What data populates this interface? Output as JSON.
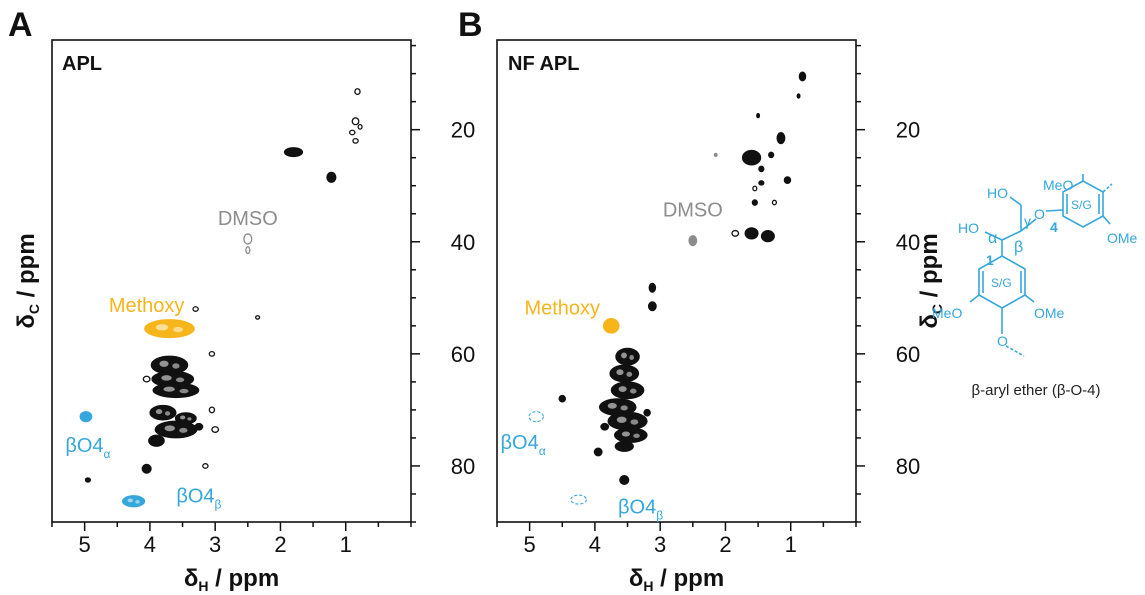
{
  "figure": {
    "colors": {
      "axis": "#111111",
      "black": "#111111",
      "gray": "#8c8c8c",
      "orange": "#f6b51b",
      "blue": "#35a7dc"
    },
    "panels": [
      {
        "letter": "A",
        "sample": "APL",
        "xlabel": "δ",
        "xlabel_sub": "H",
        "xlabel_unit": " / ppm",
        "ylabel": "δ",
        "ylabel_sub": "C",
        "ylabel_unit": " / ppm",
        "xticks": [
          {
            "v": 5,
            "label": "5"
          },
          {
            "v": 4,
            "label": "4"
          },
          {
            "v": 3,
            "label": "3"
          },
          {
            "v": 2,
            "label": "2"
          },
          {
            "v": 1,
            "label": "1"
          }
        ],
        "yticks": [
          {
            "v": 20,
            "label": "20"
          },
          {
            "v": 40,
            "label": "40"
          },
          {
            "v": 60,
            "label": "60"
          },
          {
            "v": 80,
            "label": "80"
          }
        ],
        "xlim": [
          5.5,
          0.0
        ],
        "ylim": [
          4,
          90
        ],
        "annotations": [
          {
            "id": "dmso",
            "text": "DMSO",
            "sub": "",
            "x": 2.5,
            "y": 37,
            "color": "gray"
          },
          {
            "id": "methoxy",
            "text": "Methoxy",
            "sub": "",
            "x": 4.05,
            "y": 52.5,
            "color": "orange"
          },
          {
            "id": "bo4a",
            "text": "βO4",
            "sub": "α",
            "x": 4.95,
            "y": 77.5,
            "color": "blue"
          },
          {
            "id": "bo4b",
            "text": "βO4",
            "sub": "β",
            "x": 3.25,
            "y": 86.5,
            "color": "blue"
          }
        ],
        "peaks": [
          {
            "x": 0.82,
            "y": 13.2,
            "w": 0.04,
            "h": 0.5,
            "color": "black",
            "type": "outline"
          },
          {
            "x": 0.85,
            "y": 18.5,
            "w": 0.05,
            "h": 0.6,
            "color": "black",
            "type": "outline"
          },
          {
            "x": 0.78,
            "y": 19.5,
            "w": 0.03,
            "h": 0.4,
            "color": "black",
            "type": "outline"
          },
          {
            "x": 0.9,
            "y": 20.5,
            "w": 0.04,
            "h": 0.4,
            "color": "black",
            "type": "outline"
          },
          {
            "x": 0.85,
            "y": 22.0,
            "w": 0.04,
            "h": 0.4,
            "color": "black",
            "type": "outline"
          },
          {
            "x": 1.8,
            "y": 24.0,
            "w": 0.14,
            "h": 0.8,
            "color": "black",
            "type": "fill"
          },
          {
            "x": 1.22,
            "y": 28.5,
            "w": 0.07,
            "h": 0.9,
            "color": "black",
            "type": "fill"
          },
          {
            "x": 2.5,
            "y": 39.5,
            "w": 0.06,
            "h": 0.9,
            "color": "gray",
            "type": "outline"
          },
          {
            "x": 2.5,
            "y": 41.5,
            "w": 0.03,
            "h": 0.6,
            "color": "gray",
            "type": "outline"
          },
          {
            "x": 3.3,
            "y": 52.0,
            "w": 0.04,
            "h": 0.4,
            "color": "black",
            "type": "outline"
          },
          {
            "x": 2.35,
            "y": 53.5,
            "w": 0.03,
            "h": 0.3,
            "color": "black",
            "type": "outline"
          },
          {
            "x": 3.7,
            "y": 55.5,
            "w": 0.38,
            "h": 1.6,
            "color": "orange",
            "type": "fill"
          },
          {
            "x": 3.7,
            "y": 62.0,
            "w": 0.28,
            "h": 1.6,
            "color": "black",
            "type": "fill"
          },
          {
            "x": 3.65,
            "y": 64.5,
            "w": 0.32,
            "h": 1.4,
            "color": "black",
            "type": "fill"
          },
          {
            "x": 3.6,
            "y": 66.5,
            "w": 0.35,
            "h": 1.3,
            "color": "black",
            "type": "fill"
          },
          {
            "x": 3.8,
            "y": 70.5,
            "w": 0.2,
            "h": 1.3,
            "color": "black",
            "type": "fill"
          },
          {
            "x": 3.45,
            "y": 71.5,
            "w": 0.16,
            "h": 1.0,
            "color": "black",
            "type": "fill"
          },
          {
            "x": 3.6,
            "y": 73.5,
            "w": 0.32,
            "h": 1.5,
            "color": "black",
            "type": "fill"
          },
          {
            "x": 3.9,
            "y": 75.5,
            "w": 0.12,
            "h": 1.0,
            "color": "black",
            "type": "fill"
          },
          {
            "x": 3.25,
            "y": 73.0,
            "w": 0.06,
            "h": 0.6,
            "color": "black",
            "type": "fill"
          },
          {
            "x": 3.05,
            "y": 70.0,
            "w": 0.04,
            "h": 0.5,
            "color": "black",
            "type": "outline"
          },
          {
            "x": 3.0,
            "y": 73.5,
            "w": 0.05,
            "h": 0.5,
            "color": "black",
            "type": "outline"
          },
          {
            "x": 3.9,
            "y": 66.5,
            "w": 0.05,
            "h": 0.5,
            "color": "black",
            "type": "outline"
          },
          {
            "x": 4.05,
            "y": 64.5,
            "w": 0.05,
            "h": 0.5,
            "color": "black",
            "type": "outline"
          },
          {
            "x": 3.05,
            "y": 60.0,
            "w": 0.04,
            "h": 0.4,
            "color": "black",
            "type": "outline"
          },
          {
            "x": 4.05,
            "y": 80.5,
            "w": 0.07,
            "h": 0.8,
            "color": "black",
            "type": "fill"
          },
          {
            "x": 3.15,
            "y": 80.0,
            "w": 0.04,
            "h": 0.4,
            "color": "black",
            "type": "outline"
          },
          {
            "x": 4.95,
            "y": 82.5,
            "w": 0.04,
            "h": 0.4,
            "color": "black",
            "type": "fill"
          },
          {
            "x": 4.98,
            "y": 71.2,
            "w": 0.09,
            "h": 0.9,
            "color": "blue",
            "type": "fill"
          },
          {
            "x": 4.25,
            "y": 86.3,
            "w": 0.17,
            "h": 1.0,
            "color": "blue",
            "type": "fill"
          }
        ]
      },
      {
        "letter": "B",
        "sample": "NF APL",
        "xlabel": "δ",
        "xlabel_sub": "H",
        "xlabel_unit": " / ppm",
        "ylabel": "δ",
        "ylabel_sub": "C",
        "ylabel_unit": " / ppm",
        "xticks": [
          {
            "v": 5,
            "label": "5"
          },
          {
            "v": 4,
            "label": "4"
          },
          {
            "v": 3,
            "label": "3"
          },
          {
            "v": 2,
            "label": "2"
          },
          {
            "v": 1,
            "label": "1"
          }
        ],
        "yticks": [
          {
            "v": 20,
            "label": "20"
          },
          {
            "v": 40,
            "label": "40"
          },
          {
            "v": 60,
            "label": "60"
          },
          {
            "v": 80,
            "label": "80"
          }
        ],
        "xlim": [
          5.5,
          0.0
        ],
        "ylim": [
          4,
          90
        ],
        "annotations": [
          {
            "id": "dmso",
            "text": "DMSO",
            "sub": "",
            "x": 2.5,
            "y": 35.5,
            "color": "gray"
          },
          {
            "id": "methoxy",
            "text": "Methoxy",
            "sub": "",
            "x": 4.5,
            "y": 53.0,
            "color": "orange"
          },
          {
            "id": "bo4a",
            "text": "βO4",
            "sub": "α",
            "x": 5.1,
            "y": 77.0,
            "color": "blue"
          },
          {
            "id": "bo4b",
            "text": "βO4",
            "sub": "β",
            "x": 3.3,
            "y": 88.5,
            "color": "blue"
          }
        ],
        "peaks": [
          {
            "x": 0.82,
            "y": 10.5,
            "w": 0.05,
            "h": 0.8,
            "color": "black",
            "type": "fill"
          },
          {
            "x": 0.88,
            "y": 14.0,
            "w": 0.02,
            "h": 0.4,
            "color": "black",
            "type": "fill"
          },
          {
            "x": 1.5,
            "y": 17.5,
            "w": 0.02,
            "h": 0.4,
            "color": "black",
            "type": "fill"
          },
          {
            "x": 1.15,
            "y": 21.5,
            "w": 0.06,
            "h": 1.0,
            "color": "black",
            "type": "fill"
          },
          {
            "x": 1.6,
            "y": 25.0,
            "w": 0.14,
            "h": 1.3,
            "color": "black",
            "type": "fill"
          },
          {
            "x": 1.3,
            "y": 24.5,
            "w": 0.04,
            "h": 0.5,
            "color": "black",
            "type": "fill"
          },
          {
            "x": 1.45,
            "y": 27.0,
            "w": 0.04,
            "h": 0.5,
            "color": "black",
            "type": "fill"
          },
          {
            "x": 1.45,
            "y": 29.5,
            "w": 0.04,
            "h": 0.4,
            "color": "black",
            "type": "fill"
          },
          {
            "x": 1.55,
            "y": 30.5,
            "w": 0.03,
            "h": 0.4,
            "color": "black",
            "type": "outline"
          },
          {
            "x": 1.05,
            "y": 29.0,
            "w": 0.05,
            "h": 0.6,
            "color": "black",
            "type": "fill"
          },
          {
            "x": 1.55,
            "y": 33.0,
            "w": 0.04,
            "h": 0.5,
            "color": "black",
            "type": "fill"
          },
          {
            "x": 1.25,
            "y": 33.0,
            "w": 0.03,
            "h": 0.4,
            "color": "black",
            "type": "outline"
          },
          {
            "x": 1.6,
            "y": 38.5,
            "w": 0.1,
            "h": 1.0,
            "color": "black",
            "type": "fill"
          },
          {
            "x": 1.35,
            "y": 39.0,
            "w": 0.1,
            "h": 1.0,
            "color": "black",
            "type": "fill"
          },
          {
            "x": 1.85,
            "y": 38.5,
            "w": 0.05,
            "h": 0.5,
            "color": "black",
            "type": "outline"
          },
          {
            "x": 2.15,
            "y": 24.5,
            "w": 0.02,
            "h": 0.3,
            "color": "gray",
            "type": "fill"
          },
          {
            "x": 2.5,
            "y": 39.8,
            "w": 0.06,
            "h": 0.9,
            "color": "gray",
            "type": "fill"
          },
          {
            "x": 3.12,
            "y": 48.2,
            "w": 0.05,
            "h": 0.8,
            "color": "black",
            "type": "fill"
          },
          {
            "x": 3.12,
            "y": 51.5,
            "w": 0.06,
            "h": 0.8,
            "color": "black",
            "type": "fill"
          },
          {
            "x": 3.75,
            "y": 55.0,
            "w": 0.12,
            "h": 1.3,
            "color": "orange",
            "type": "fill"
          },
          {
            "x": 3.5,
            "y": 60.5,
            "w": 0.18,
            "h": 1.5,
            "color": "black",
            "type": "fill"
          },
          {
            "x": 3.55,
            "y": 63.5,
            "w": 0.22,
            "h": 1.5,
            "color": "black",
            "type": "fill"
          },
          {
            "x": 3.5,
            "y": 66.5,
            "w": 0.25,
            "h": 1.5,
            "color": "black",
            "type": "fill"
          },
          {
            "x": 3.65,
            "y": 69.5,
            "w": 0.28,
            "h": 1.5,
            "color": "black",
            "type": "fill"
          },
          {
            "x": 3.5,
            "y": 72.0,
            "w": 0.3,
            "h": 1.6,
            "color": "black",
            "type": "fill"
          },
          {
            "x": 3.45,
            "y": 74.5,
            "w": 0.25,
            "h": 1.3,
            "color": "black",
            "type": "fill"
          },
          {
            "x": 3.55,
            "y": 76.5,
            "w": 0.14,
            "h": 0.9,
            "color": "black",
            "type": "fill"
          },
          {
            "x": 3.85,
            "y": 73.0,
            "w": 0.06,
            "h": 0.6,
            "color": "black",
            "type": "fill"
          },
          {
            "x": 3.2,
            "y": 70.5,
            "w": 0.05,
            "h": 0.6,
            "color": "black",
            "type": "fill"
          },
          {
            "x": 4.5,
            "y": 68.0,
            "w": 0.05,
            "h": 0.6,
            "color": "black",
            "type": "fill"
          },
          {
            "x": 3.95,
            "y": 77.5,
            "w": 0.06,
            "h": 0.7,
            "color": "black",
            "type": "fill"
          },
          {
            "x": 3.55,
            "y": 82.5,
            "w": 0.07,
            "h": 0.8,
            "color": "black",
            "type": "fill"
          },
          {
            "x": 4.9,
            "y": 71.2,
            "w": 0.11,
            "h": 0.9,
            "color": "blue",
            "type": "dashed"
          },
          {
            "x": 4.25,
            "y": 86.0,
            "w": 0.12,
            "h": 0.8,
            "color": "blue",
            "type": "dashed"
          }
        ]
      }
    ],
    "structure": {
      "caption": "β-aryl ether (β-O-4)",
      "labels": {
        "ho_top": "HO",
        "meo_top": "MeO",
        "gamma": "γ",
        "ho_left": "HO",
        "alpha": "α",
        "beta": "β",
        "o_link": "O",
        "four": "4",
        "sg_top": "S/G",
        "ome_right": "OMe",
        "one": "1",
        "sg_bottom": "S/G",
        "meo_bottom": "MeO",
        "ome_bottom": "OMe",
        "o_bottom": "O"
      }
    }
  }
}
